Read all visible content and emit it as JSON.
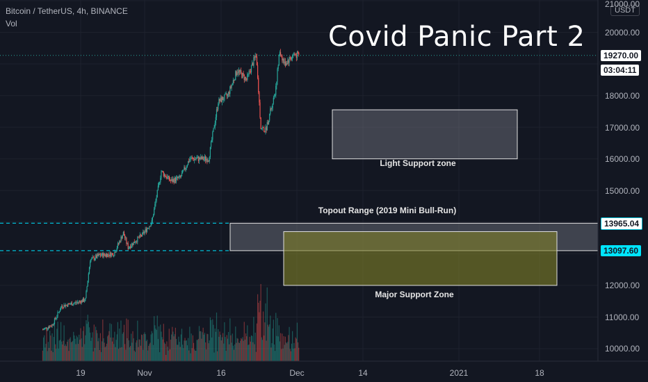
{
  "header": {
    "symbol": "Bitcoin / TetherUS, 4h, BINANCE",
    "indicator": "Vol"
  },
  "title": "Covid Panic Part 2",
  "unit_button": "USDT",
  "colors": {
    "background": "#131722",
    "up": "#26a69a",
    "down": "#ef5350",
    "cyan": "#00bcd4"
  },
  "annotations": {
    "light_support": "Light Support zone",
    "topout": "Topout Range (2019 Mini Bull-Run)",
    "major_support": "Major Support Zone"
  },
  "price_tags": {
    "last_price": "19270.00",
    "countdown": "03:04:11",
    "level_high": "13965.04",
    "level_low": "13097.60"
  },
  "chart_data": {
    "type": "candlestick",
    "title": "Covid Panic Part 2",
    "y_ticks": [
      "21000.00",
      "20000.00",
      "18000.00",
      "17000.00",
      "16000.00",
      "15000.00",
      "12000.00",
      "11000.00",
      "10000.00"
    ],
    "ylim": [
      9750,
      21100
    ],
    "x_ticks": [
      "19",
      "Nov",
      "16",
      "Dec",
      "14",
      "2021",
      "18"
    ],
    "close_path": [
      {
        "x": "Oct 11",
        "y": 10600
      },
      {
        "x": "Oct 13",
        "y": 10750
      },
      {
        "x": "Oct 15",
        "y": 11350
      },
      {
        "x": "Oct 18",
        "y": 11450
      },
      {
        "x": "Oct 20",
        "y": 11550
      },
      {
        "x": "Oct 21",
        "y": 12800
      },
      {
        "x": "Oct 23",
        "y": 12950
      },
      {
        "x": "Oct 26",
        "y": 13000
      },
      {
        "x": "Oct 28",
        "y": 13650
      },
      {
        "x": "Oct 29",
        "y": 13200
      },
      {
        "x": "Nov 1",
        "y": 13600
      },
      {
        "x": "Nov 3",
        "y": 14000
      },
      {
        "x": "Nov 5",
        "y": 15600
      },
      {
        "x": "Nov 7",
        "y": 15300
      },
      {
        "x": "Nov 9",
        "y": 15400
      },
      {
        "x": "Nov 11",
        "y": 16000
      },
      {
        "x": "Nov 13",
        "y": 16000
      },
      {
        "x": "Nov 15",
        "y": 16000
      },
      {
        "x": "Nov 17",
        "y": 17800
      },
      {
        "x": "Nov 19",
        "y": 18000
      },
      {
        "x": "Nov 21",
        "y": 18800
      },
      {
        "x": "Nov 23",
        "y": 18500
      },
      {
        "x": "Nov 25",
        "y": 19300
      },
      {
        "x": "Nov 26",
        "y": 17000
      },
      {
        "x": "Nov 27",
        "y": 16900
      },
      {
        "x": "Nov 29",
        "y": 18100
      },
      {
        "x": "Nov 30",
        "y": 19400
      },
      {
        "x": "Dec 1",
        "y": 19000
      },
      {
        "x": "Dec 3",
        "y": 19300
      },
      {
        "x": "Dec 4",
        "y": 19270
      }
    ],
    "levels": [
      {
        "label": "13965.04",
        "y": 13965.04,
        "style": "dashed"
      },
      {
        "label": "13097.60",
        "y": 13097.6,
        "style": "dashed"
      },
      {
        "label": "19270.00",
        "y": 19270,
        "style": "dotted"
      }
    ],
    "zones": [
      {
        "label": "Light Support zone",
        "y_range": [
          16000,
          17550
        ],
        "color": "#5d606b"
      },
      {
        "label": "Topout Range (2019 Mini Bull-Run)",
        "y_range": [
          13097.6,
          13965.04
        ],
        "color": "#4a4e59"
      },
      {
        "label": "Major Support Zone",
        "y_range": [
          12000,
          13700
        ],
        "color": "#6b6b2e"
      }
    ],
    "grid": true
  }
}
